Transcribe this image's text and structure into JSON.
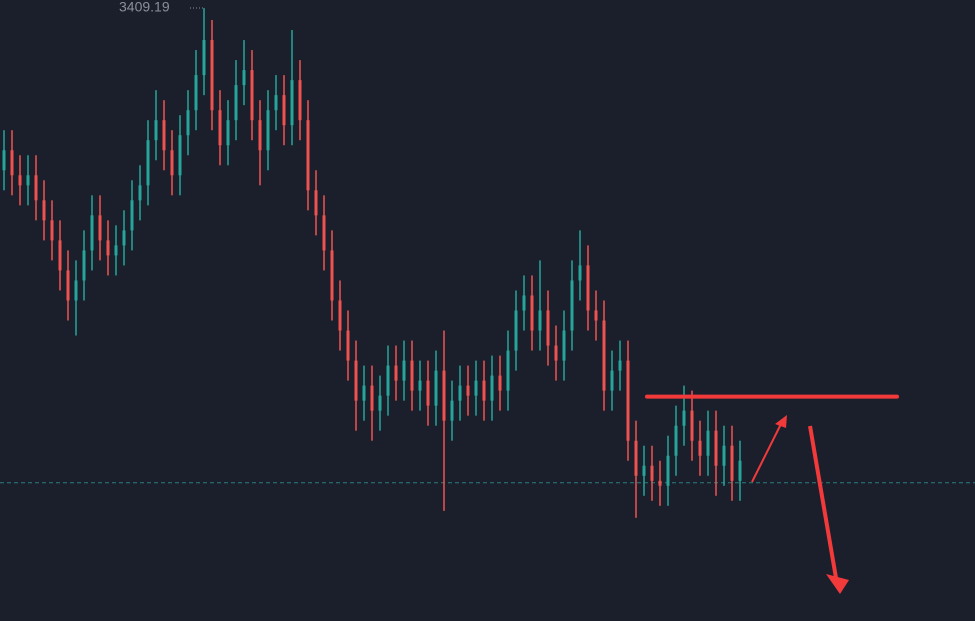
{
  "chart_data": {
    "type": "candlestick",
    "high_label": "3409.19",
    "ylim": [
      3348,
      3410
    ],
    "up_color": "#26a69a",
    "down_color": "#ef5350",
    "price_line": 3361.8,
    "resistance": 3370.4,
    "open": [
      3393.0,
      3395.0,
      3392.5,
      3391.5,
      3392.5,
      3390.0,
      3388.0,
      3386.0,
      3383.0,
      3380.0,
      3382.0,
      3385.0,
      3388.5,
      3386.0,
      3384.5,
      3385.5,
      3387.0,
      3390.0,
      3391.5,
      3396.0,
      3398.0,
      3395.0,
      3392.5,
      3396.5,
      3399.0,
      3402.5,
      3406.0,
      3399.0,
      3395.5,
      3398.0,
      3401.5,
      3403.0,
      3398.0,
      3395.0,
      3399.0,
      3400.5,
      3397.5,
      3402.0,
      3398.0,
      3391.0,
      3388.5,
      3385.0,
      3380.0,
      3377.0,
      3374.0,
      3370.0,
      3371.5,
      3369.0,
      3370.5,
      3373.5,
      3372.0,
      3374.0,
      3371.0,
      3372.0,
      3369.5,
      3373.0,
      3368.0,
      3370.0,
      3371.5,
      3370.5,
      3372.0,
      3370.0,
      3372.5,
      3371.0,
      3375.0,
      3379.0,
      3380.5,
      3377.0,
      3379.0,
      3375.5,
      3374.0,
      3377.0,
      3382.0,
      3383.5,
      3379.0,
      3378.0,
      3371.0,
      3373.0,
      3374.0,
      3366.0,
      3362.5,
      3363.5,
      3362.0,
      3361.5,
      3364.5,
      3367.5,
      3369.0,
      3366.0,
      3364.5,
      3367.0,
      3363.5,
      3365.5,
      3362.0
    ],
    "high": [
      3397.0,
      3397.0,
      3394.5,
      3394.5,
      3394.5,
      3392.0,
      3390.0,
      3388.0,
      3385.0,
      3384.0,
      3387.0,
      3390.5,
      3390.5,
      3388.0,
      3387.5,
      3389.0,
      3392.0,
      3393.5,
      3398.0,
      3401.0,
      3400.0,
      3397.0,
      3398.5,
      3401.0,
      3405.0,
      3409.19,
      3408.0,
      3401.0,
      3400.0,
      3404.0,
      3406.0,
      3405.0,
      3400.0,
      3401.0,
      3402.5,
      3402.5,
      3407.0,
      3404.0,
      3400.0,
      3393.0,
      3390.5,
      3387.0,
      3382.0,
      3379.0,
      3376.0,
      3373.5,
      3373.5,
      3372.5,
      3375.5,
      3375.5,
      3376.0,
      3376.0,
      3374.0,
      3374.0,
      3375.0,
      3377.0,
      3372.0,
      3373.5,
      3373.5,
      3374.0,
      3374.0,
      3374.5,
      3374.5,
      3377.0,
      3381.0,
      3382.5,
      3382.5,
      3384.0,
      3381.0,
      3377.5,
      3379.0,
      3384.0,
      3387.0,
      3385.5,
      3381.0,
      3380.0,
      3375.0,
      3376.0,
      3376.0,
      3368.0,
      3365.5,
      3365.5,
      3364.0,
      3366.5,
      3369.5,
      3371.5,
      3371.0,
      3368.0,
      3369.0,
      3369.0,
      3367.5,
      3367.5,
      3366.0
    ],
    "low": [
      3391.0,
      3390.5,
      3389.5,
      3389.5,
      3388.0,
      3386.0,
      3384.0,
      3381.0,
      3378.0,
      3376.5,
      3380.0,
      3383.0,
      3384.0,
      3382.5,
      3382.5,
      3383.5,
      3385.0,
      3388.0,
      3389.5,
      3394.0,
      3393.0,
      3390.5,
      3390.5,
      3394.5,
      3397.0,
      3400.5,
      3397.0,
      3393.5,
      3393.5,
      3396.0,
      3399.5,
      3396.0,
      3391.5,
      3393.0,
      3397.0,
      3395.5,
      3395.5,
      3396.0,
      3389.0,
      3386.5,
      3383.0,
      3378.0,
      3375.0,
      3372.0,
      3367.0,
      3368.0,
      3366.0,
      3367.0,
      3368.5,
      3370.0,
      3370.0,
      3369.0,
      3369.0,
      3367.5,
      3367.5,
      3359.0,
      3366.0,
      3368.0,
      3368.5,
      3368.5,
      3368.0,
      3368.0,
      3369.0,
      3369.0,
      3373.0,
      3377.0,
      3375.0,
      3375.0,
      3373.5,
      3372.0,
      3372.0,
      3375.0,
      3380.0,
      3377.0,
      3376.0,
      3369.0,
      3369.0,
      3371.0,
      3364.0,
      3358.3,
      3360.5,
      3360.0,
      3359.5,
      3359.5,
      3362.5,
      3365.5,
      3364.0,
      3362.5,
      3362.5,
      3360.5,
      3361.5,
      3360.0,
      3360.0
    ],
    "close": [
      3395.0,
      3392.5,
      3391.5,
      3392.5,
      3390.0,
      3388.0,
      3386.0,
      3383.0,
      3380.0,
      3382.0,
      3385.0,
      3388.5,
      3386.0,
      3384.5,
      3385.5,
      3387.0,
      3390.0,
      3391.5,
      3396.0,
      3398.0,
      3395.0,
      3392.5,
      3396.5,
      3399.0,
      3402.5,
      3406.0,
      3399.0,
      3395.5,
      3398.0,
      3401.5,
      3403.0,
      3398.0,
      3395.0,
      3399.0,
      3400.5,
      3397.5,
      3402.0,
      3398.0,
      3391.0,
      3388.5,
      3385.0,
      3380.0,
      3377.0,
      3374.0,
      3370.0,
      3371.5,
      3369.0,
      3370.5,
      3373.5,
      3372.0,
      3374.0,
      3371.0,
      3372.0,
      3369.5,
      3373.0,
      3368.0,
      3370.0,
      3371.5,
      3370.5,
      3372.0,
      3370.0,
      3372.5,
      3371.0,
      3375.0,
      3379.0,
      3380.5,
      3377.0,
      3379.0,
      3375.5,
      3374.0,
      3377.0,
      3382.0,
      3383.5,
      3379.0,
      3378.0,
      3371.0,
      3373.0,
      3374.0,
      3366.0,
      3362.5,
      3363.5,
      3362.0,
      3361.5,
      3364.5,
      3367.5,
      3369.0,
      3366.0,
      3364.5,
      3367.0,
      3363.5,
      3365.5,
      3362.0,
      3364.0
    ]
  }
}
